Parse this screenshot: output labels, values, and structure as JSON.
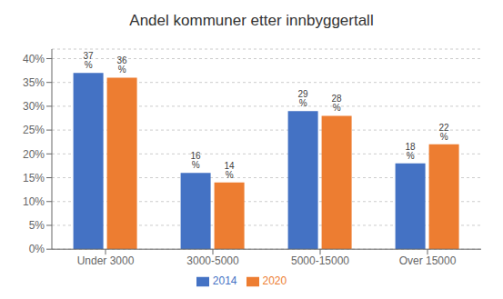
{
  "chart_data": {
    "type": "bar",
    "title": "Andel kommuner etter innbyggertall",
    "categories": [
      "Under 3000",
      "3000-5000",
      "5000-15000",
      "Over 15000"
    ],
    "series": [
      {
        "name": "2014",
        "color": "#4472C4",
        "values": [
          37,
          16,
          29,
          18
        ],
        "value_labels": [
          "37 %",
          "16 %",
          "29 %",
          "18 %"
        ]
      },
      {
        "name": "2020",
        "color": "#ED7D31",
        "values": [
          36,
          14,
          28,
          22
        ],
        "value_labels": [
          "36 %",
          "14 %",
          "28 %",
          "22 %"
        ]
      }
    ],
    "ylim": [
      0,
      42
    ],
    "yticks": [
      {
        "value": 0,
        "label": "0%"
      },
      {
        "value": 5,
        "label": "5%"
      },
      {
        "value": 10,
        "label": "10%"
      },
      {
        "value": 15,
        "label": "15%"
      },
      {
        "value": 20,
        "label": "20%"
      },
      {
        "value": 25,
        "label": "25%"
      },
      {
        "value": 30,
        "label": "30%"
      },
      {
        "value": 35,
        "label": "35%"
      },
      {
        "value": 40,
        "label": "40%"
      }
    ],
    "grid": true,
    "legend": "bottom",
    "data_labels": true
  }
}
